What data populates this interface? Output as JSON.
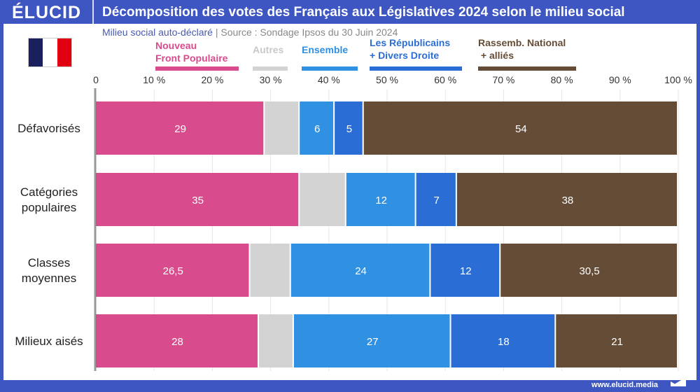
{
  "header": {
    "logo": "ÉLUCID",
    "title": "Décomposition des votes des Français aux Législatives 2024 selon le milieu social"
  },
  "subtitle": {
    "left": "Milieu social auto-déclaré",
    "sep": " | ",
    "source": "Source : Sondage Ipsos du 30 Juin 2024"
  },
  "flag": {
    "colors": [
      "#1a1f5e",
      "#ffffff",
      "#e0000f"
    ]
  },
  "footer": {
    "url": "www.elucid.media"
  },
  "chart_data": {
    "type": "bar",
    "orientation": "horizontal",
    "stacked": true,
    "categories": [
      "Défavorisés",
      "Catégories populaires",
      "Classes moyennes",
      "Milieux aisés"
    ],
    "category_lines": [
      [
        "Défavorisés"
      ],
      [
        "Catégories",
        "populaires"
      ],
      [
        "Classes",
        "moyennes"
      ],
      [
        "Milieux aisés"
      ]
    ],
    "xlim": [
      0,
      100
    ],
    "ticks": [
      "0",
      "10 %",
      "20 %",
      "30 %",
      "40 %",
      "50 %",
      "60 %",
      "70 %",
      "80 %",
      "90 %",
      "100 %"
    ],
    "grid": true,
    "legend_position": "top",
    "series": [
      {
        "name": "Nouveau Front Populaire",
        "legend_lines": [
          "Nouveau",
          "Front Populaire"
        ],
        "color": "#d84b8d",
        "text_color": "#d84b8d",
        "values": [
          29,
          35,
          26.5,
          28
        ],
        "labels": [
          "29",
          "35",
          "26,5",
          "28"
        ]
      },
      {
        "name": "Autres",
        "legend_lines": [
          "Autres"
        ],
        "color": "#d3d3d3",
        "text_color": "#c9c9c9",
        "values": [
          6,
          8,
          7,
          6
        ],
        "labels": [
          "",
          "",
          "",
          ""
        ]
      },
      {
        "name": "Ensemble",
        "legend_lines": [
          "Ensemble"
        ],
        "color": "#3091e3",
        "text_color": "#2f8fe0",
        "values": [
          6,
          12,
          24,
          27
        ],
        "labels": [
          "6",
          "12",
          "24",
          "27"
        ]
      },
      {
        "name": "Les Républicains + Divers Droite",
        "legend_lines": [
          "Les Républicains",
          "+ Divers Droite"
        ],
        "color": "#2a6ed5",
        "text_color": "#2a6ed5",
        "values": [
          5,
          7,
          12,
          18
        ],
        "labels": [
          "5",
          "7",
          "12",
          "18"
        ]
      },
      {
        "name": "Rassemb. National + alliés",
        "legend_lines": [
          "Rassemb. National",
          " + alliés"
        ],
        "color": "#654c37",
        "text_color": "#654c37",
        "values": [
          54,
          38,
          30.5,
          21
        ],
        "labels": [
          "54",
          "38",
          "30,5",
          "21"
        ]
      }
    ]
  }
}
